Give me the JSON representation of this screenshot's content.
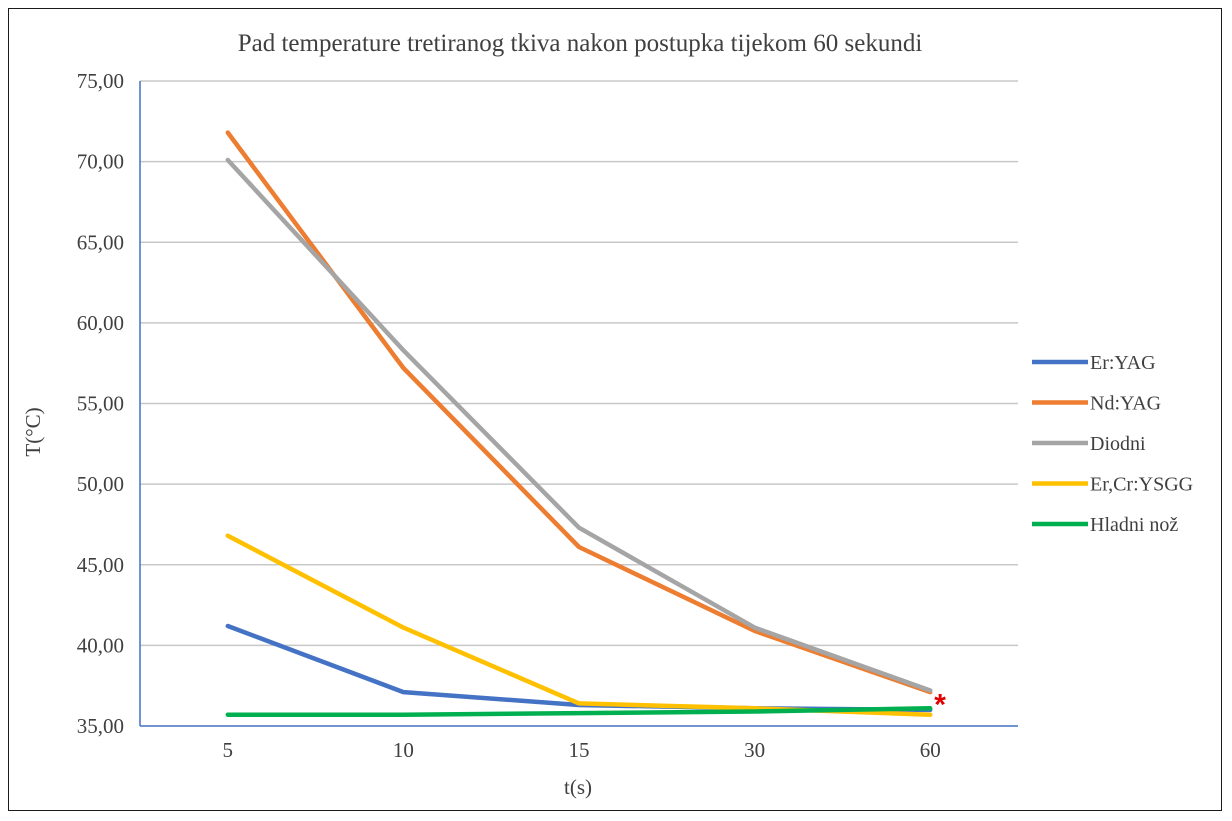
{
  "chart_data": {
    "type": "line",
    "title": "Pad temperature tretiranog tkiva nakon postupka tijekom 60 sekundi",
    "xlabel": "t(s)",
    "ylabel": "T(°C)",
    "categories": [
      "5",
      "10",
      "15",
      "30",
      "60"
    ],
    "ylim": [
      35,
      75
    ],
    "yticks": [
      "35,00",
      "40,00",
      "45,00",
      "50,00",
      "55,00",
      "60,00",
      "65,00",
      "70,00",
      "75,00"
    ],
    "ytick_values": [
      35,
      40,
      45,
      50,
      55,
      60,
      65,
      70,
      75
    ],
    "grid": "horizontal",
    "legend_position": "right",
    "series": [
      {
        "name": "Er:YAG",
        "color": "#4472c4",
        "values": [
          41.2,
          37.1,
          36.3,
          36.1,
          36.0
        ]
      },
      {
        "name": "Nd:YAG",
        "color": "#ed7d31",
        "values": [
          71.8,
          57.2,
          46.1,
          40.9,
          37.1
        ]
      },
      {
        "name": "Diodni",
        "color": "#a5a5a5",
        "values": [
          70.1,
          58.3,
          47.3,
          41.1,
          37.2
        ]
      },
      {
        "name": "Er,Cr:YSGG",
        "color": "#ffc000",
        "values": [
          46.8,
          41.1,
          36.4,
          36.1,
          35.7
        ]
      },
      {
        "name": "Hladni nož",
        "color": "#00b050",
        "values": [
          35.7,
          35.7,
          35.8,
          35.9,
          36.1
        ]
      }
    ],
    "annotation": {
      "text": "*",
      "color": "#e00000"
    }
  }
}
